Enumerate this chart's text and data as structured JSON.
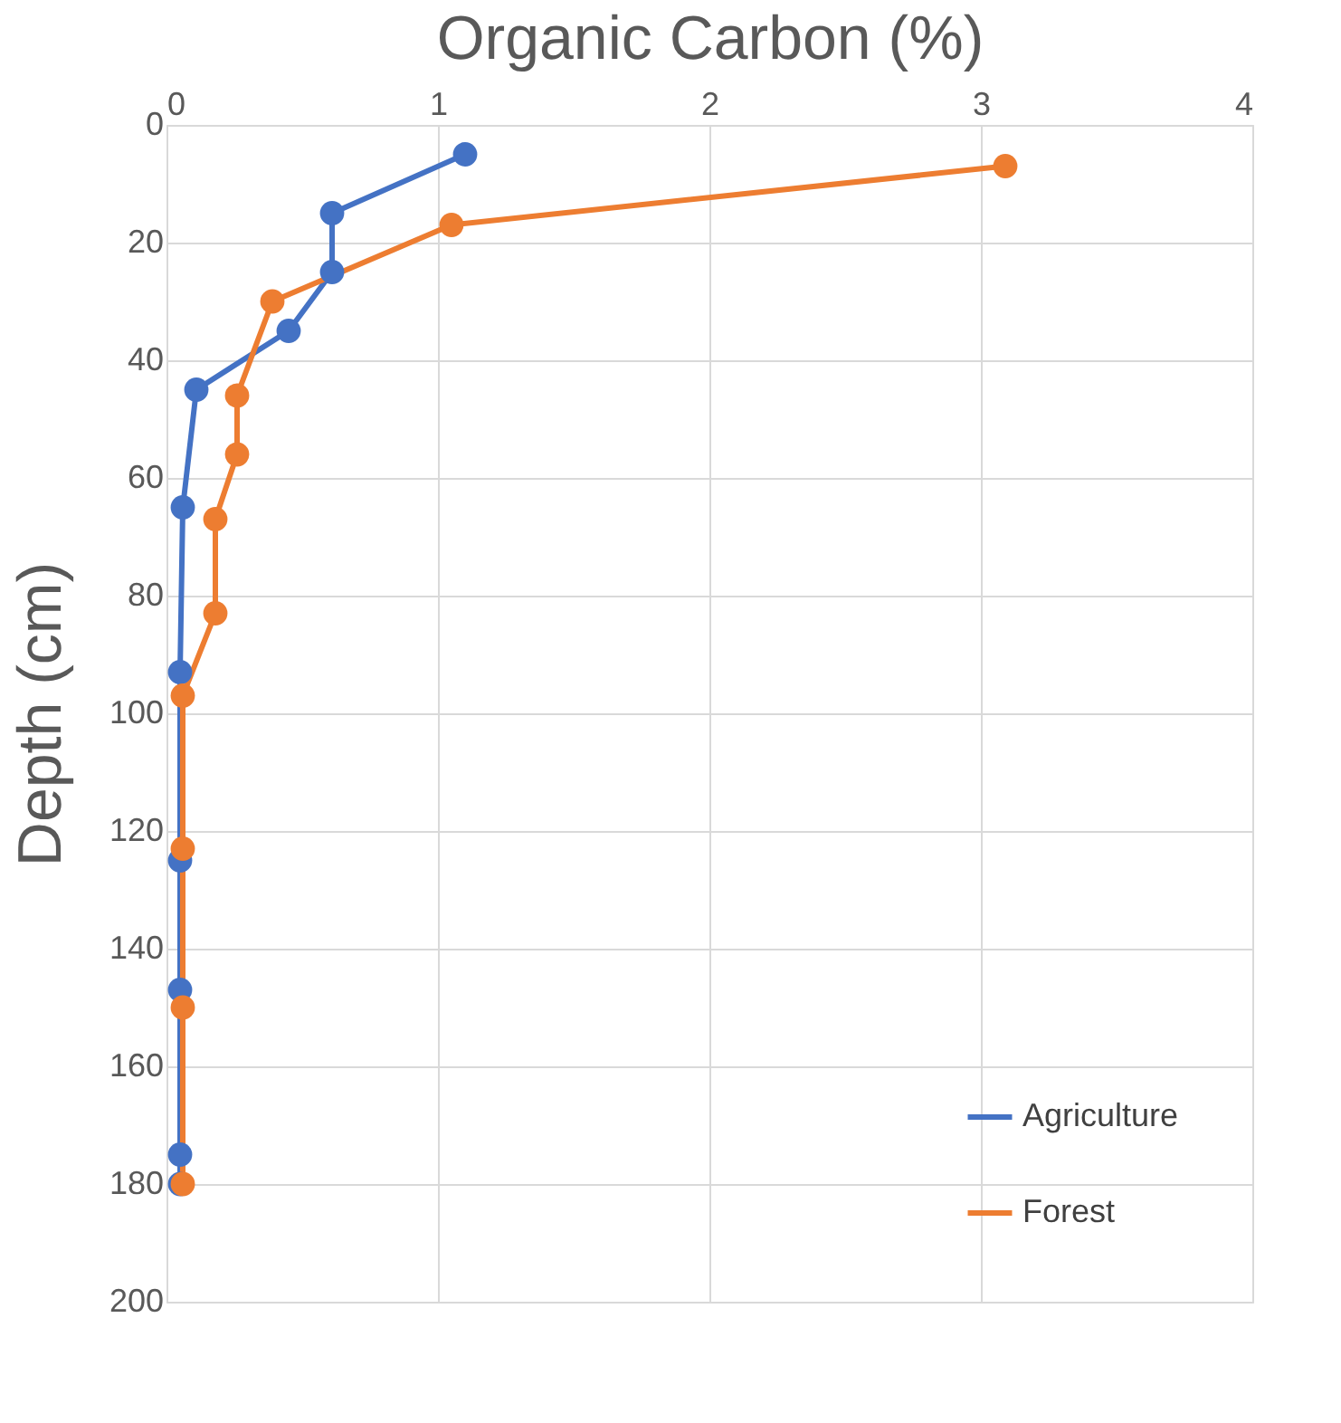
{
  "chart_data": {
    "type": "line",
    "xlabel": "Organic Carbon (%)",
    "ylabel": "Depth (cm)",
    "xlim": [
      0,
      4
    ],
    "xticks": [
      0,
      1,
      2,
      3,
      4
    ],
    "ylim": [
      200,
      0
    ],
    "yticks": [
      0,
      20,
      40,
      60,
      80,
      100,
      120,
      140,
      160,
      180,
      200
    ],
    "grid": true,
    "legend": "bottom right",
    "marker": "circle",
    "line_style": "solid",
    "series": [
      {
        "name": "Agriculture",
        "color": "#4472c4",
        "x": [
          1.1,
          0.61,
          0.61,
          0.45,
          0.11,
          0.06,
          0.05,
          0.05,
          0.05,
          0.05,
          0.05
        ],
        "values": [
          5,
          15,
          25,
          35,
          45,
          65,
          93,
          125,
          147,
          175,
          180
        ]
      },
      {
        "name": "Forest",
        "color": "#ed7d31",
        "x": [
          3.09,
          1.05,
          0.39,
          0.26,
          0.26,
          0.18,
          0.18,
          0.06,
          0.06,
          0.06,
          0.06
        ],
        "values": [
          7,
          17,
          30,
          46,
          56,
          67,
          83,
          97,
          123,
          150,
          180
        ]
      }
    ]
  }
}
